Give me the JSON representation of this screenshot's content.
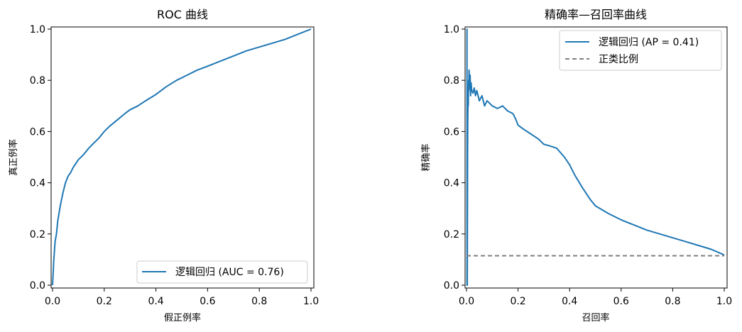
{
  "chart_data": [
    {
      "type": "line",
      "title": "ROC 曲线",
      "xlabel": "假正例率",
      "ylabel": "真正例率",
      "xlim": [
        0.0,
        1.0
      ],
      "ylim": [
        0.0,
        1.0
      ],
      "xticks": [
        "0.0",
        "0.2",
        "0.4",
        "0.6",
        "0.8",
        "1.0"
      ],
      "yticks": [
        "0.0",
        "0.2",
        "0.4",
        "0.6",
        "0.8",
        "1.0"
      ],
      "grid": false,
      "legend_position": "lower-right",
      "series": [
        {
          "name": "逻辑回归 (AUC = 0.76)",
          "color": "#1f77b4",
          "style": "solid",
          "x": [
            0,
            0.005,
            0.01,
            0.015,
            0.02,
            0.03,
            0.04,
            0.05,
            0.06,
            0.07,
            0.08,
            0.09,
            0.1,
            0.12,
            0.14,
            0.16,
            0.18,
            0.2,
            0.22,
            0.25,
            0.28,
            0.3,
            0.33,
            0.36,
            0.4,
            0.44,
            0.48,
            0.52,
            0.56,
            0.6,
            0.65,
            0.7,
            0.75,
            0.8,
            0.85,
            0.9,
            0.95,
            1.0
          ],
          "y": [
            0,
            0.1,
            0.17,
            0.2,
            0.25,
            0.31,
            0.36,
            0.4,
            0.425,
            0.44,
            0.46,
            0.475,
            0.49,
            0.51,
            0.535,
            0.555,
            0.575,
            0.6,
            0.62,
            0.645,
            0.67,
            0.685,
            0.7,
            0.72,
            0.745,
            0.775,
            0.8,
            0.82,
            0.84,
            0.855,
            0.875,
            0.895,
            0.915,
            0.93,
            0.945,
            0.96,
            0.98,
            1.0
          ]
        }
      ]
    },
    {
      "type": "line",
      "title": "精确率—召回率曲线",
      "xlabel": "召回率",
      "ylabel": "精确率",
      "xlim": [
        0.0,
        1.0
      ],
      "ylim": [
        0.0,
        1.0
      ],
      "xticks": [
        "0.0",
        "0.2",
        "0.4",
        "0.6",
        "0.8",
        "1.0"
      ],
      "yticks": [
        "0.0",
        "0.2",
        "0.4",
        "0.6",
        "0.8",
        "1.0"
      ],
      "grid": false,
      "legend_position": "upper-right",
      "series": [
        {
          "name": "逻辑回归 (AP = 0.41)",
          "color": "#1f77b4",
          "style": "solid",
          "x": [
            0.0,
            0.002,
            0.002,
            0.003,
            0.004,
            0.005,
            0.006,
            0.007,
            0.008,
            0.009,
            0.01,
            0.012,
            0.014,
            0.016,
            0.018,
            0.02,
            0.025,
            0.03,
            0.035,
            0.04,
            0.05,
            0.06,
            0.07,
            0.08,
            0.1,
            0.12,
            0.14,
            0.16,
            0.18,
            0.19,
            0.2,
            0.22,
            0.25,
            0.28,
            0.3,
            0.32,
            0.35,
            0.38,
            0.4,
            0.42,
            0.45,
            0.48,
            0.5,
            0.55,
            0.6,
            0.65,
            0.7,
            0.75,
            0.8,
            0.85,
            0.9,
            0.95,
            1.0
          ],
          "y": [
            1.0,
            1.0,
            0.0,
            0.0,
            0.5,
            0.65,
            0.72,
            0.7,
            0.8,
            0.76,
            0.84,
            0.77,
            0.82,
            0.74,
            0.79,
            0.76,
            0.75,
            0.77,
            0.74,
            0.76,
            0.72,
            0.74,
            0.7,
            0.72,
            0.7,
            0.69,
            0.7,
            0.68,
            0.67,
            0.65,
            0.625,
            0.61,
            0.59,
            0.57,
            0.55,
            0.545,
            0.535,
            0.5,
            0.47,
            0.43,
            0.38,
            0.335,
            0.31,
            0.28,
            0.255,
            0.235,
            0.215,
            0.2,
            0.185,
            0.17,
            0.155,
            0.14,
            0.118
          ]
        },
        {
          "name": "正类比例",
          "color": "#7f7f7f",
          "style": "dashed",
          "x": [
            0.0,
            1.0
          ],
          "y": [
            0.115,
            0.115
          ]
        }
      ]
    }
  ]
}
